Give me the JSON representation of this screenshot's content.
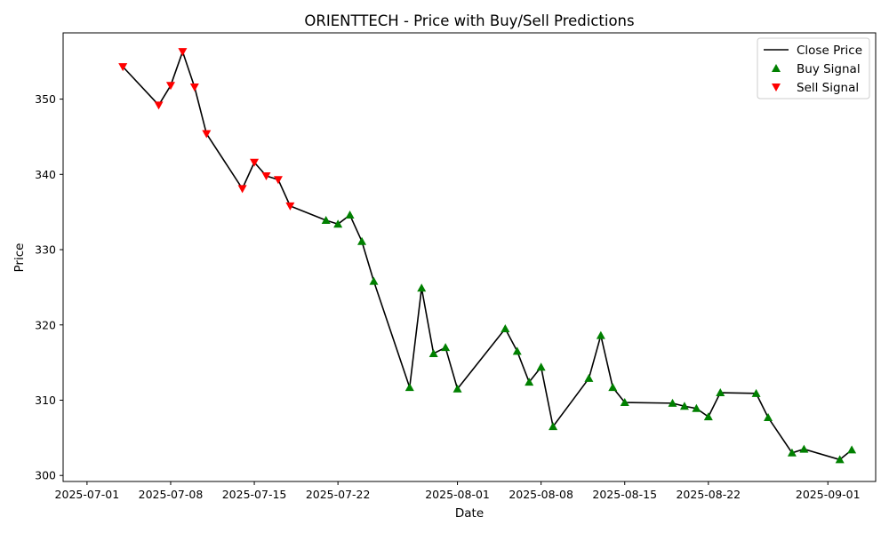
{
  "chart_data": {
    "type": "line",
    "title": "ORIENTTECH - Price with Buy/Sell Predictions",
    "xlabel": "Date",
    "ylabel": "Price",
    "x_ticks": [
      "2025-07-01",
      "2025-07-08",
      "2025-07-15",
      "2025-07-22",
      "2025-08-01",
      "2025-08-08",
      "2025-08-15",
      "2025-08-22",
      "2025-09-01"
    ],
    "y_ticks": [
      300,
      310,
      320,
      330,
      340,
      350
    ],
    "xlim": [
      "2025-06-29",
      "2025-09-05"
    ],
    "ylim": [
      299.2,
      358.8
    ],
    "grid": false,
    "legend_position": "top-right",
    "colors": {
      "close": "#000000",
      "buy": "#008000",
      "sell": "#ff0000"
    },
    "series": [
      {
        "name": "Close Price",
        "kind": "line",
        "points": [
          [
            "2025-07-04",
            354.3
          ],
          [
            "2025-07-07",
            349.2
          ],
          [
            "2025-07-08",
            351.8
          ],
          [
            "2025-07-09",
            356.3
          ],
          [
            "2025-07-10",
            351.6
          ],
          [
            "2025-07-11",
            345.4
          ],
          [
            "2025-07-14",
            338.1
          ],
          [
            "2025-07-15",
            341.6
          ],
          [
            "2025-07-16",
            339.8
          ],
          [
            "2025-07-17",
            339.3
          ],
          [
            "2025-07-18",
            335.8
          ],
          [
            "2025-07-21",
            333.9
          ],
          [
            "2025-07-22",
            333.4
          ],
          [
            "2025-07-23",
            334.6
          ],
          [
            "2025-07-24",
            331.1
          ],
          [
            "2025-07-25",
            325.8
          ],
          [
            "2025-07-28",
            311.7
          ],
          [
            "2025-07-29",
            324.9
          ],
          [
            "2025-07-30",
            316.2
          ],
          [
            "2025-07-31",
            317.0
          ],
          [
            "2025-08-01",
            311.5
          ],
          [
            "2025-08-05",
            319.5
          ],
          [
            "2025-08-06",
            316.5
          ],
          [
            "2025-08-07",
            312.4
          ],
          [
            "2025-08-08",
            314.4
          ],
          [
            "2025-08-09",
            306.5
          ],
          [
            "2025-08-12",
            312.9
          ],
          [
            "2025-08-13",
            318.6
          ],
          [
            "2025-08-14",
            311.7
          ],
          [
            "2025-08-15",
            309.7
          ],
          [
            "2025-08-19",
            309.6
          ],
          [
            "2025-08-20",
            309.2
          ],
          [
            "2025-08-21",
            308.9
          ],
          [
            "2025-08-22",
            307.8
          ],
          [
            "2025-08-23",
            311.0
          ],
          [
            "2025-08-26",
            310.9
          ],
          [
            "2025-08-27",
            307.7
          ],
          [
            "2025-08-29",
            303.0
          ],
          [
            "2025-08-30",
            303.5
          ],
          [
            "2025-09-02",
            302.1
          ],
          [
            "2025-09-03",
            303.4
          ]
        ]
      },
      {
        "name": "Buy Signal",
        "kind": "scatter",
        "marker": "triangle-up",
        "points": [
          [
            "2025-07-21",
            333.9
          ],
          [
            "2025-07-22",
            333.4
          ],
          [
            "2025-07-23",
            334.6
          ],
          [
            "2025-07-24",
            331.1
          ],
          [
            "2025-07-25",
            325.8
          ],
          [
            "2025-07-28",
            311.7
          ],
          [
            "2025-07-29",
            324.9
          ],
          [
            "2025-07-30",
            316.2
          ],
          [
            "2025-07-31",
            317.0
          ],
          [
            "2025-08-01",
            311.5
          ],
          [
            "2025-08-05",
            319.5
          ],
          [
            "2025-08-06",
            316.5
          ],
          [
            "2025-08-07",
            312.4
          ],
          [
            "2025-08-08",
            314.4
          ],
          [
            "2025-08-09",
            306.5
          ],
          [
            "2025-08-12",
            312.9
          ],
          [
            "2025-08-13",
            318.6
          ],
          [
            "2025-08-14",
            311.7
          ],
          [
            "2025-08-15",
            309.7
          ],
          [
            "2025-08-19",
            309.6
          ],
          [
            "2025-08-20",
            309.2
          ],
          [
            "2025-08-21",
            308.9
          ],
          [
            "2025-08-22",
            307.8
          ],
          [
            "2025-08-23",
            311.0
          ],
          [
            "2025-08-26",
            310.9
          ],
          [
            "2025-08-27",
            307.7
          ],
          [
            "2025-08-29",
            303.0
          ],
          [
            "2025-08-30",
            303.5
          ],
          [
            "2025-09-02",
            302.1
          ],
          [
            "2025-09-03",
            303.4
          ]
        ]
      },
      {
        "name": "Sell Signal",
        "kind": "scatter",
        "marker": "triangle-down",
        "points": [
          [
            "2025-07-04",
            354.3
          ],
          [
            "2025-07-07",
            349.2
          ],
          [
            "2025-07-08",
            351.8
          ],
          [
            "2025-07-09",
            356.3
          ],
          [
            "2025-07-10",
            351.6
          ],
          [
            "2025-07-11",
            345.4
          ],
          [
            "2025-07-14",
            338.1
          ],
          [
            "2025-07-15",
            341.6
          ],
          [
            "2025-07-16",
            339.8
          ],
          [
            "2025-07-17",
            339.3
          ],
          [
            "2025-07-18",
            335.8
          ]
        ]
      }
    ]
  }
}
